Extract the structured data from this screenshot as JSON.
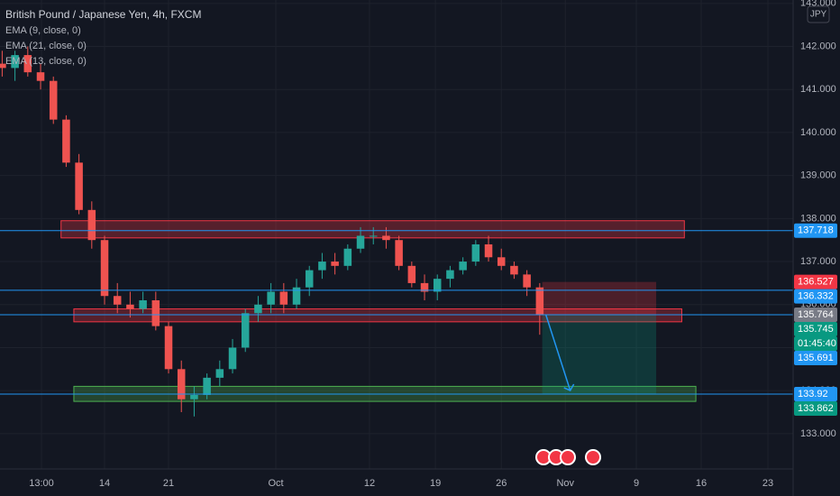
{
  "chart_data": {
    "type": "candlestick",
    "title": "British Pound / Japanese Yen, 4h, FXCM",
    "currency": "JPY",
    "indicators": [
      "EMA (9, close, 0)",
      "EMA (21, close, 0)",
      "EMA (13, close, 0)"
    ],
    "x": [
      -8,
      -7,
      -6,
      -5,
      -4,
      -3,
      -2,
      -1,
      0,
      1,
      2,
      3,
      4,
      5,
      6,
      7,
      8,
      9,
      10,
      11,
      12,
      13,
      14,
      15,
      16,
      17,
      18,
      19,
      20,
      21,
      22,
      23,
      24,
      25,
      26,
      27,
      28,
      29,
      30,
      31,
      32,
      33,
      34
    ],
    "open": [
      141.6,
      141.5,
      141.8,
      141.4,
      141.2,
      140.3,
      139.3,
      138.2,
      137.5,
      136.2,
      136.0,
      135.9,
      136.1,
      135.5,
      134.5,
      133.8,
      133.9,
      134.3,
      134.5,
      135.0,
      135.8,
      136.0,
      136.3,
      136.0,
      136.4,
      136.8,
      137.0,
      136.9,
      137.3,
      137.6,
      137.6,
      137.5,
      136.9,
      136.5,
      136.3,
      136.6,
      136.8,
      137.0,
      137.4,
      137.1,
      136.9,
      136.7,
      136.4
    ],
    "high": [
      141.9,
      141.9,
      142.0,
      141.6,
      141.3,
      140.4,
      139.5,
      138.4,
      137.6,
      136.5,
      136.3,
      136.3,
      136.3,
      135.6,
      134.7,
      134.1,
      134.4,
      134.7,
      135.2,
      135.9,
      136.2,
      136.5,
      136.5,
      136.6,
      136.9,
      137.2,
      137.2,
      137.4,
      137.8,
      137.8,
      137.8,
      137.6,
      137.0,
      136.7,
      136.7,
      136.9,
      137.1,
      137.5,
      137.6,
      137.3,
      137.0,
      136.8,
      136.5
    ],
    "low": [
      141.3,
      141.2,
      141.3,
      141.0,
      140.2,
      139.2,
      138.1,
      137.3,
      136.0,
      135.8,
      135.7,
      135.8,
      135.4,
      134.4,
      133.5,
      133.4,
      133.8,
      134.1,
      134.4,
      134.9,
      135.6,
      135.8,
      135.8,
      135.9,
      136.2,
      136.6,
      136.7,
      136.8,
      137.2,
      137.4,
      137.3,
      136.8,
      136.4,
      136.1,
      136.1,
      136.4,
      136.7,
      136.9,
      137.0,
      136.8,
      136.6,
      136.2,
      135.3
    ],
    "close": [
      141.5,
      141.8,
      141.4,
      141.2,
      140.3,
      139.3,
      138.2,
      137.5,
      136.2,
      136.0,
      135.9,
      136.1,
      135.5,
      134.5,
      133.8,
      133.9,
      134.3,
      134.5,
      135.0,
      135.8,
      136.0,
      136.3,
      136.0,
      136.4,
      136.8,
      137.0,
      136.9,
      137.3,
      137.6,
      137.6,
      137.5,
      136.9,
      136.5,
      136.3,
      136.6,
      136.8,
      137.0,
      137.4,
      137.1,
      136.9,
      136.7,
      136.4,
      135.764
    ],
    "up_color": "#26a69a",
    "down_color": "#ef5350",
    "xlim": [
      -8.17,
      53.8
    ],
    "xticks": [
      {
        "value": -4.93,
        "label": "13:00"
      },
      {
        "value": 0,
        "label": "14"
      },
      {
        "value": 5,
        "label": "21"
      },
      {
        "value": 13.38,
        "label": "Oct"
      },
      {
        "value": 20.7,
        "label": "12"
      },
      {
        "value": 25.85,
        "label": "19"
      },
      {
        "value": 31,
        "label": "26"
      },
      {
        "value": 36,
        "label": "Nov"
      },
      {
        "value": 41.55,
        "label": "9"
      },
      {
        "value": 46.62,
        "label": "16"
      },
      {
        "value": 51.83,
        "label": "23"
      }
    ],
    "ylim": [
      132.18,
      143.08
    ],
    "yticks": [
      {
        "value": 133,
        "label": "133.000"
      },
      {
        "value": 134,
        "label": "134.000"
      },
      {
        "value": 135,
        "label": "135.000"
      },
      {
        "value": 136,
        "label": "136.000"
      },
      {
        "value": 137,
        "label": "137.000"
      },
      {
        "value": 138,
        "label": "138.000"
      },
      {
        "value": 139,
        "label": "139.000"
      },
      {
        "value": 140,
        "label": "140.000"
      },
      {
        "value": 141,
        "label": "141.000"
      },
      {
        "value": 142,
        "label": "142.000"
      },
      {
        "value": 143,
        "label": "143.000"
      }
    ],
    "grid": true,
    "zones": [
      {
        "low": 137.55,
        "high": 137.95,
        "start": -3.4,
        "end": 45.3,
        "color": "#f23645"
      },
      {
        "low": 135.6,
        "high": 135.9,
        "start": -2.4,
        "end": 45.1,
        "color": "#f23645"
      },
      {
        "low": 133.75,
        "high": 134.1,
        "start": -2.4,
        "end": 46.2,
        "color": "#4caf50"
      }
    ],
    "hlines": [
      137.718,
      136.332,
      135.764,
      133.92
    ],
    "hline_color": "#2196f3",
    "position": {
      "entry": 135.764,
      "stop": 136.527,
      "target": 133.92,
      "start": 34.2,
      "end": 43.1
    },
    "price_labels": [
      {
        "value": 137.718,
        "color": "#2196f3"
      },
      {
        "value": 136.527,
        "color": "#f23645"
      },
      {
        "value": 136.332,
        "color": "#2196f3"
      },
      {
        "value": 135.764,
        "color": "#787b86"
      },
      {
        "value": 135.745,
        "color": "#089981"
      },
      {
        "countdown": "01:45:40",
        "color": "#089981"
      },
      {
        "value": 135.691,
        "color": "#2196f3"
      },
      {
        "value": 133.92,
        "color": "#2196f3"
      },
      {
        "value": 133.862,
        "color": "#089981"
      }
    ]
  }
}
